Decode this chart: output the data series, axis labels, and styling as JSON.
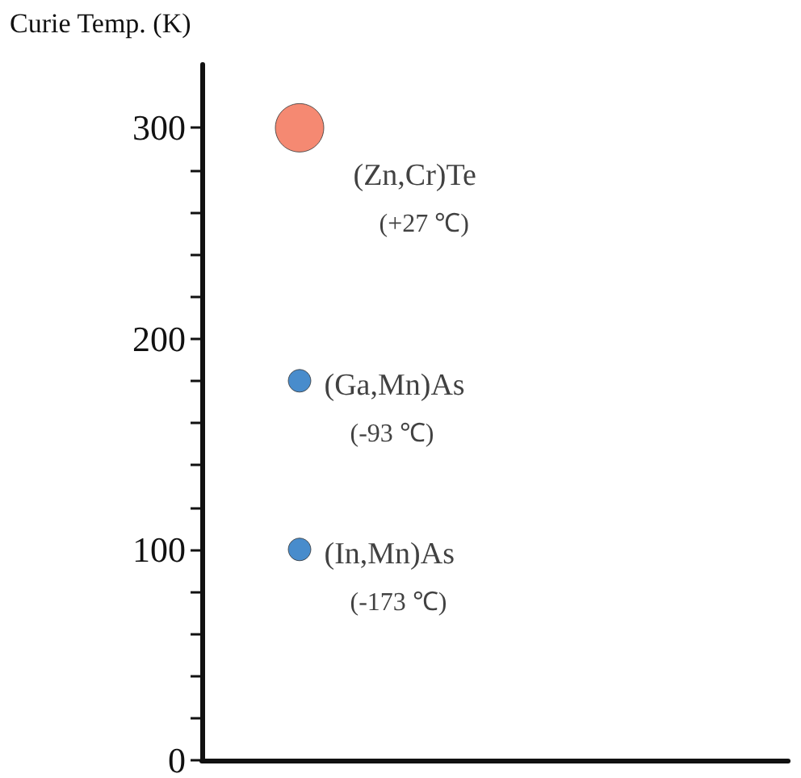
{
  "chart_data": {
    "type": "scatter",
    "ylabel": "Curie Temp. (K)",
    "categories": [
      null,
      null,
      null
    ],
    "series": [
      {
        "name": "(Zn,Cr)Te",
        "color": "#f26b4f",
        "values": [
          300,
          null,
          null
        ]
      },
      {
        "name": "(Ga,Mn)As",
        "color": "#1a6fbf",
        "values": [
          180,
          null,
          null
        ]
      },
      {
        "name": "(In,Mn)As",
        "color": "#1a6fbf",
        "values": [
          100,
          null,
          null
        ]
      }
    ],
    "annotations": [
      "(+27 ℃)",
      "(-93 ℃)",
      "(-173 ℃)"
    ],
    "ylim": [
      0,
      330
    ],
    "yticks": [
      0,
      {
        "value": 20,
        "label": null
      },
      {
        "value": 40,
        "label": null
      },
      {
        "value": 60,
        "label": null
      },
      {
        "value": 80,
        "label": null
      },
      100,
      {
        "value": 120,
        "label": null
      },
      {
        "value": 140,
        "label": null
      },
      {
        "value": 160,
        "label": null
      },
      {
        "value": 180,
        "label": null
      },
      200,
      {
        "value": 220,
        "label": null
      },
      {
        "value": 240,
        "label": null
      },
      {
        "value": 260,
        "label": null
      },
      {
        "value": 280,
        "label": null
      },
      300
    ],
    "marker": "circle",
    "grid": false,
    "legend": false
  }
}
